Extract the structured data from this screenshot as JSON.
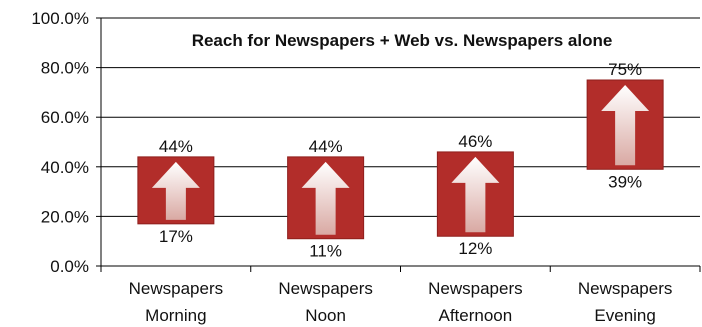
{
  "chart_data": {
    "type": "bar",
    "title": "Reach for Newspapers + Web vs. Newspapers alone",
    "categories": [
      "Newspapers Morning",
      "Newspapers Noon",
      "Newspapers Afternoon",
      "Newspapers Evening"
    ],
    "category_lines": [
      [
        "Newspapers",
        "Morning"
      ],
      [
        "Newspapers",
        "Noon"
      ],
      [
        "Newspapers",
        "Afternoon"
      ],
      [
        "Newspapers",
        "Evening"
      ]
    ],
    "series": [
      {
        "values": [
          17,
          11,
          12,
          39
        ]
      },
      {
        "values": [
          44,
          44,
          46,
          75
        ]
      }
    ],
    "low_labels": [
      "17%",
      "11%",
      "12%",
      "39%"
    ],
    "high_labels": [
      "44%",
      "44%",
      "46%",
      "75%"
    ],
    "ylim": [
      0,
      100
    ],
    "yticks": [
      0,
      20,
      40,
      60,
      80,
      100
    ],
    "ytick_labels": [
      "0.0%",
      "20.0%",
      "40.0%",
      "60.0%",
      "80.0%",
      "100.0%"
    ],
    "xlabel": "",
    "ylabel": "",
    "grid": true,
    "legend": "none",
    "colors": {
      "bar": "#b22d2a",
      "bar_edge": "#8f1f1c",
      "arrow_top": "#ffffff",
      "arrow_bottom": "#d9a9a3",
      "grid": "#000000"
    }
  }
}
